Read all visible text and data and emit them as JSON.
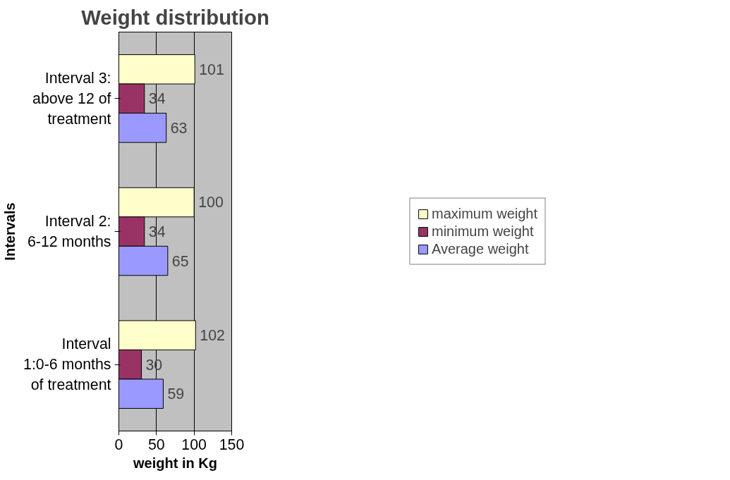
{
  "chart_data": {
    "type": "bar",
    "orientation": "horizontal",
    "title": "Weight distribution",
    "xlabel": "weight in Kg",
    "ylabel": "Intervals",
    "categories": [
      "Interval 3: above 12 of treatment",
      "Interval 2: 6-12 months",
      "Interval 1:0-6 months of treatment"
    ],
    "series": [
      {
        "name": "maximum weight",
        "color": "#ffffcc",
        "values": [
          101,
          100,
          102
        ]
      },
      {
        "name": "minimum weight",
        "color": "#993366",
        "values": [
          34,
          34,
          30
        ]
      },
      {
        "name": "Average weight",
        "color": "#9999ff",
        "values": [
          63,
          65,
          59
        ]
      }
    ],
    "xlim": [
      0,
      150
    ],
    "xticks": [
      0,
      50,
      100,
      150
    ],
    "grid": "x",
    "legend": "right",
    "data_labels": true
  }
}
